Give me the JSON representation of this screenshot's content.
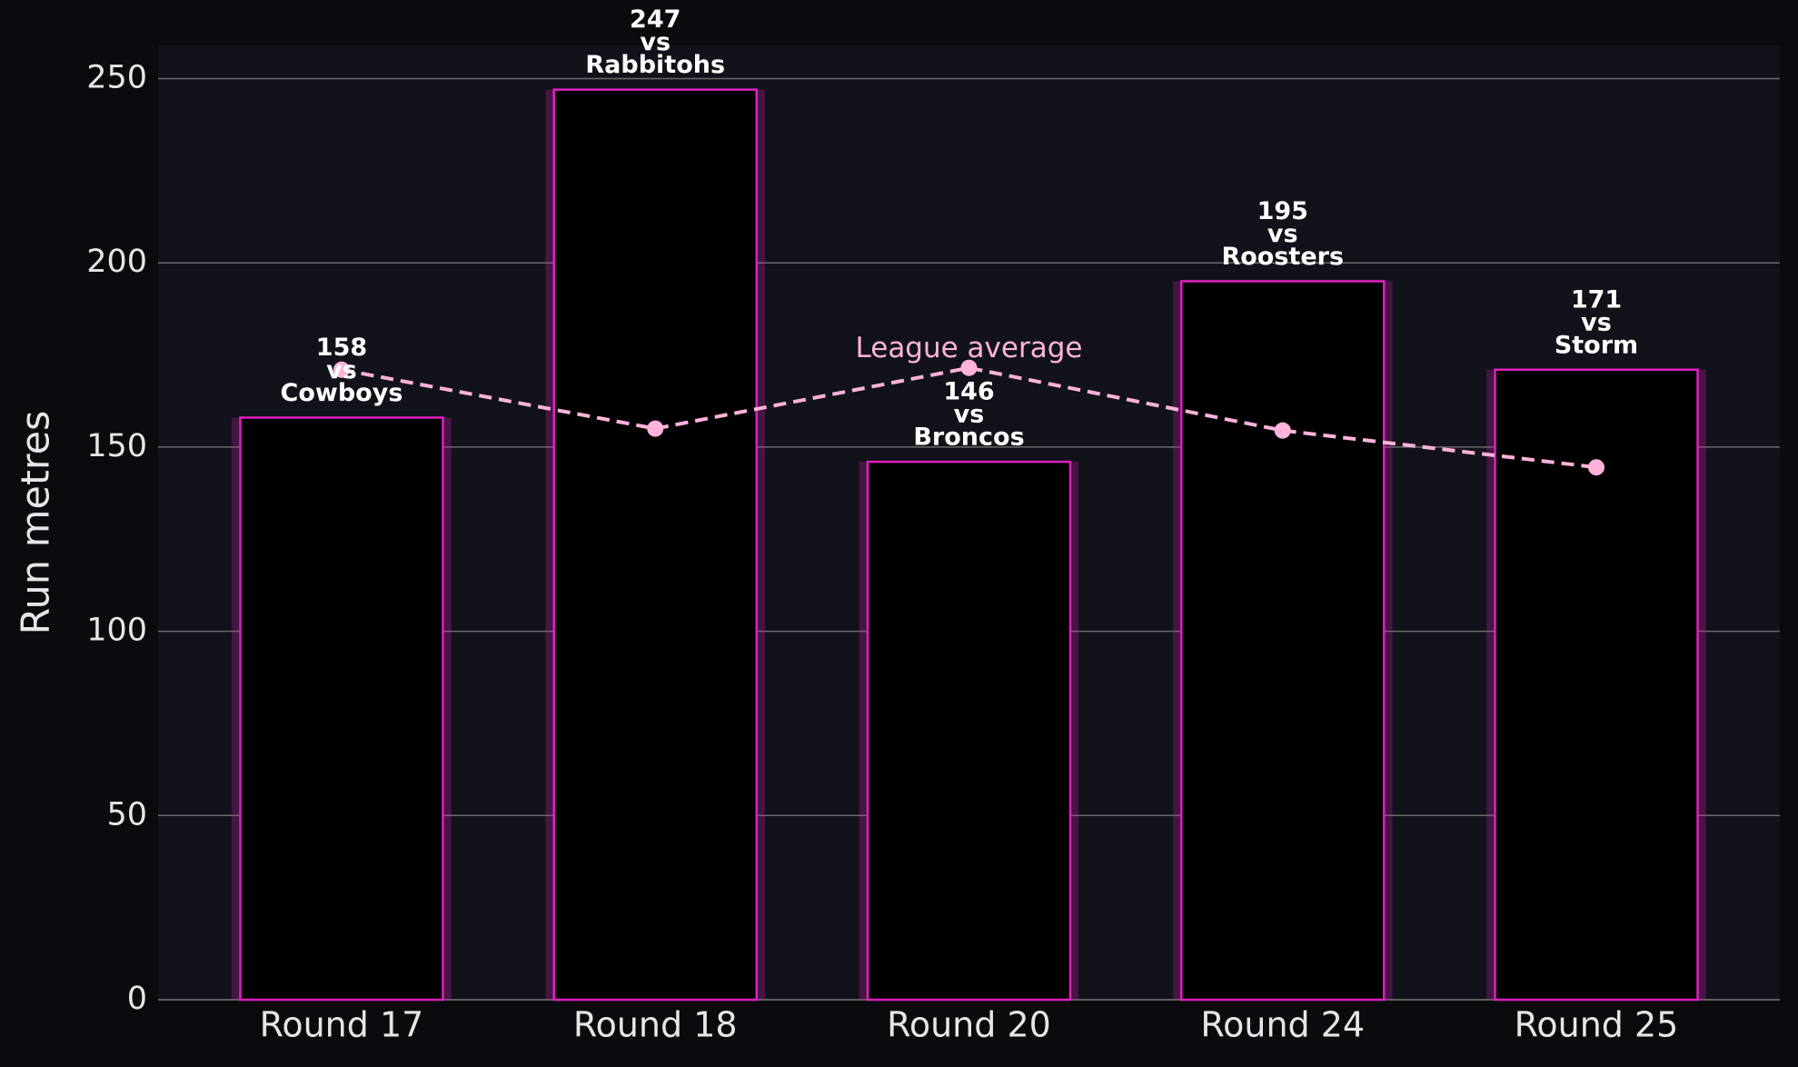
{
  "chart_data": {
    "type": "bar",
    "y_label": "Run metres",
    "categories": [
      "Round 17",
      "Round 18",
      "Round 20",
      "Round 24",
      "Round 25"
    ],
    "values": [
      158,
      247,
      146,
      195,
      171
    ],
    "color": "#000000",
    "edge_color": "#e020c0",
    "label_joiner": "vs",
    "opponents": [
      "Cowboys",
      "Rabbitohs",
      "Broncos",
      "Roosters",
      "Storm"
    ],
    "average": {
      "name": "League average",
      "color": "#ffb3d9",
      "values": [
        171,
        155,
        171.5,
        154.5,
        144.5
      ]
    },
    "ylim": [
      0,
      259
    ],
    "yticks": [
      0,
      50,
      100,
      150,
      200,
      250
    ],
    "grid": true
  }
}
